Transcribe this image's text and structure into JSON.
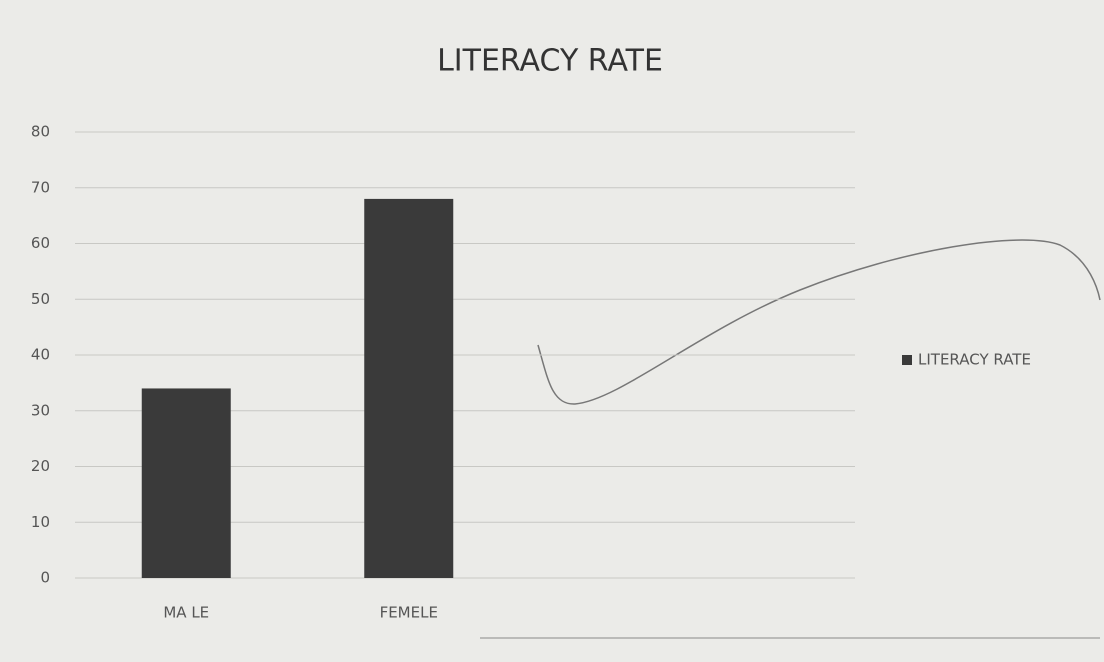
{
  "chart_data": {
    "type": "bar",
    "title": "LITERACY RATE",
    "categories": [
      "MA LE",
      "FEMELE"
    ],
    "series": [
      {
        "name": "LITERACY RATE",
        "color": "#3a3a3a",
        "values": [
          34,
          68
        ]
      }
    ],
    "ylim": [
      0,
      80
    ],
    "yticks": [
      0,
      10,
      20,
      30,
      40,
      50,
      60,
      70,
      80
    ],
    "grid": true,
    "legend": "right"
  }
}
